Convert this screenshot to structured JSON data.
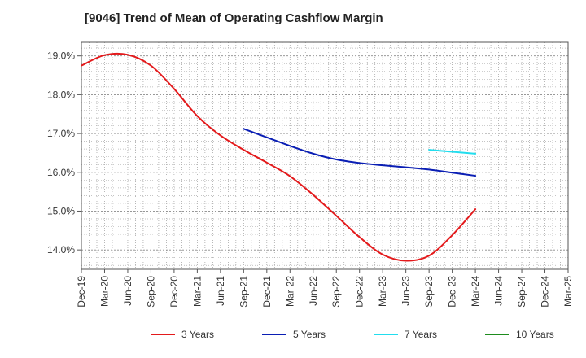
{
  "chart_data": {
    "type": "line",
    "title": "[9046]  Trend of Mean of Operating Cashflow Margin",
    "xlabel": "",
    "ylabel": "",
    "y_unit": "%",
    "ylim": [
      13.5,
      19.35
    ],
    "y_ticks": [
      14.0,
      15.0,
      16.0,
      17.0,
      18.0,
      19.0
    ],
    "y_tick_labels": [
      "14.0%",
      "15.0%",
      "16.0%",
      "17.0%",
      "18.0%",
      "19.0%"
    ],
    "categories": [
      "Dec-19",
      "Mar-20",
      "Jun-20",
      "Sep-20",
      "Dec-20",
      "Mar-21",
      "Jun-21",
      "Sep-21",
      "Dec-21",
      "Mar-22",
      "Jun-22",
      "Sep-22",
      "Dec-22",
      "Mar-23",
      "Jun-23",
      "Sep-23",
      "Dec-23",
      "Mar-24",
      "Jun-24",
      "Sep-24",
      "Dec-24",
      "Mar-25"
    ],
    "grid": true,
    "legend_position": "bottom",
    "series": [
      {
        "name": "3 Years",
        "color": "#e31a1c",
        "values": [
          18.75,
          19.02,
          19.03,
          18.75,
          18.15,
          17.45,
          16.95,
          16.58,
          16.25,
          15.9,
          15.42,
          14.88,
          14.33,
          13.88,
          13.72,
          13.85,
          14.38,
          15.05,
          null,
          null,
          null,
          null
        ]
      },
      {
        "name": "5 Years",
        "color": "#0a1eb4",
        "values": [
          null,
          null,
          null,
          null,
          null,
          null,
          null,
          17.12,
          16.9,
          16.68,
          16.48,
          16.33,
          16.24,
          16.18,
          16.13,
          16.07,
          15.99,
          15.91,
          null,
          null,
          null,
          null
        ]
      },
      {
        "name": "7 Years",
        "color": "#22ddee",
        "values": [
          null,
          null,
          null,
          null,
          null,
          null,
          null,
          null,
          null,
          null,
          null,
          null,
          null,
          null,
          null,
          16.58,
          16.53,
          16.48,
          null,
          null,
          null,
          null
        ]
      },
      {
        "name": "10 Years",
        "color": "#1e8c1e",
        "values": [
          null,
          null,
          null,
          null,
          null,
          null,
          null,
          null,
          null,
          null,
          null,
          null,
          null,
          null,
          null,
          null,
          null,
          null,
          null,
          null,
          null,
          null
        ]
      }
    ]
  }
}
